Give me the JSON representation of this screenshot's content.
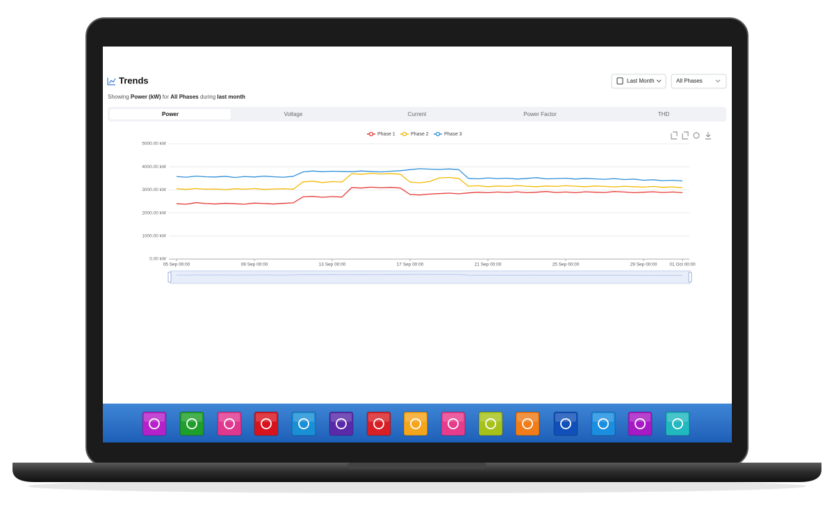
{
  "header": {
    "title": "Trends",
    "subtitle": [
      "Showing ",
      "Power (kW)",
      " for ",
      "All Phases",
      " during ",
      "last month"
    ],
    "period": "Last Month",
    "phase": "All Phases"
  },
  "tabs": [
    "Power",
    "Voltage",
    "Current",
    "Power Factor",
    "THD"
  ],
  "chart_data": {
    "type": "line",
    "x": [
      "05 Sep 00:00",
      "05 Sep 12:00",
      "06 Sep 00:00",
      "06 Sep 12:00",
      "07 Sep 00:00",
      "07 Sep 12:00",
      "08 Sep 00:00",
      "08 Sep 12:00",
      "09 Sep 00:00",
      "09 Sep 12:00",
      "10 Sep 00:00",
      "10 Sep 12:00",
      "11 Sep 00:00",
      "11 Sep 12:00",
      "12 Sep 00:00",
      "12 Sep 12:00",
      "13 Sep 00:00",
      "13 Sep 12:00",
      "14 Sep 00:00",
      "14 Sep 12:00",
      "15 Sep 00:00",
      "15 Sep 12:00",
      "16 Sep 00:00",
      "16 Sep 12:00",
      "17 Sep 00:00",
      "17 Sep 12:00",
      "18 Sep 00:00",
      "18 Sep 12:00",
      "19 Sep 00:00",
      "19 Sep 12:00",
      "20 Sep 00:00",
      "20 Sep 12:00",
      "21 Sep 00:00",
      "21 Sep 12:00",
      "22 Sep 00:00",
      "22 Sep 12:00",
      "23 Sep 00:00",
      "23 Sep 12:00",
      "24 Sep 00:00",
      "24 Sep 12:00",
      "25 Sep 00:00",
      "25 Sep 12:00",
      "26 Sep 00:00",
      "26 Sep 12:00",
      "27 Sep 00:00",
      "27 Sep 12:00",
      "28 Sep 00:00",
      "28 Sep 12:00",
      "29 Sep 00:00",
      "29 Sep 12:00",
      "30 Sep 00:00",
      "30 Sep 12:00",
      "01 Oct 00:00"
    ],
    "series": [
      {
        "name": "Phase 1",
        "color": "#e53935",
        "values": [
          2400,
          2380,
          2450,
          2410,
          2390,
          2420,
          2400,
          2380,
          2430,
          2410,
          2390,
          2420,
          2440,
          2700,
          2720,
          2680,
          2710,
          2690,
          3100,
          3080,
          3120,
          3090,
          3110,
          3080,
          2800,
          2780,
          2820,
          2840,
          2860,
          2830,
          2870,
          2900,
          2880,
          2910,
          2890,
          2920,
          2880,
          2900,
          2930,
          2890,
          2910,
          2880,
          2920,
          2900,
          2890,
          2930,
          2910,
          2880,
          2900,
          2920,
          2890,
          2910,
          2880
        ]
      },
      {
        "name": "Phase 2",
        "color": "#f5b800",
        "values": [
          3050,
          3020,
          3060,
          3030,
          3040,
          3010,
          3050,
          3030,
          3060,
          3020,
          3040,
          3050,
          3030,
          3350,
          3380,
          3320,
          3360,
          3340,
          3700,
          3680,
          3720,
          3690,
          3710,
          3680,
          3340,
          3310,
          3360,
          3520,
          3540,
          3500,
          3160,
          3180,
          3140,
          3170,
          3150,
          3190,
          3160,
          3140,
          3170,
          3150,
          3180,
          3160,
          3140,
          3170,
          3150,
          3130,
          3160,
          3140,
          3120,
          3150,
          3110,
          3130,
          3100
        ]
      },
      {
        "name": "Phase 3",
        "color": "#2f8fd8",
        "values": [
          3580,
          3550,
          3600,
          3570,
          3560,
          3590,
          3540,
          3580,
          3560,
          3600,
          3570,
          3550,
          3590,
          3780,
          3820,
          3790,
          3810,
          3800,
          3790,
          3820,
          3800,
          3780,
          3810,
          3830,
          3880,
          3920,
          3900,
          3890,
          3910,
          3880,
          3500,
          3480,
          3520,
          3490,
          3510,
          3470,
          3500,
          3530,
          3480,
          3490,
          3510,
          3470,
          3500,
          3480,
          3460,
          3490,
          3450,
          3470,
          3420,
          3440,
          3400,
          3420,
          3390
        ]
      }
    ],
    "xlim": [
      "05 Sep 00:00",
      "01 Oct 00:00"
    ],
    "xticks": [
      "05 Sep 00:00",
      "09 Sep 00:00",
      "13 Sep 00:00",
      "17 Sep 00:00",
      "21 Sep 00:00",
      "25 Sep 00:00",
      "29 Sep 00:00",
      "01 Oct 00:00"
    ],
    "ylim": [
      0,
      5000
    ],
    "yticks": [
      {
        "value": 0,
        "label": "0.00 kW"
      },
      {
        "value": 1000,
        "label": "1000.00 kW"
      },
      {
        "value": 2000,
        "label": "2000.00 kW"
      },
      {
        "value": 3000,
        "label": "3000.00 kW"
      },
      {
        "value": 4000,
        "label": "4000.00 kW"
      },
      {
        "value": 5000,
        "label": "5000.00 kW"
      }
    ],
    "grid": true,
    "legend": "top"
  }
}
